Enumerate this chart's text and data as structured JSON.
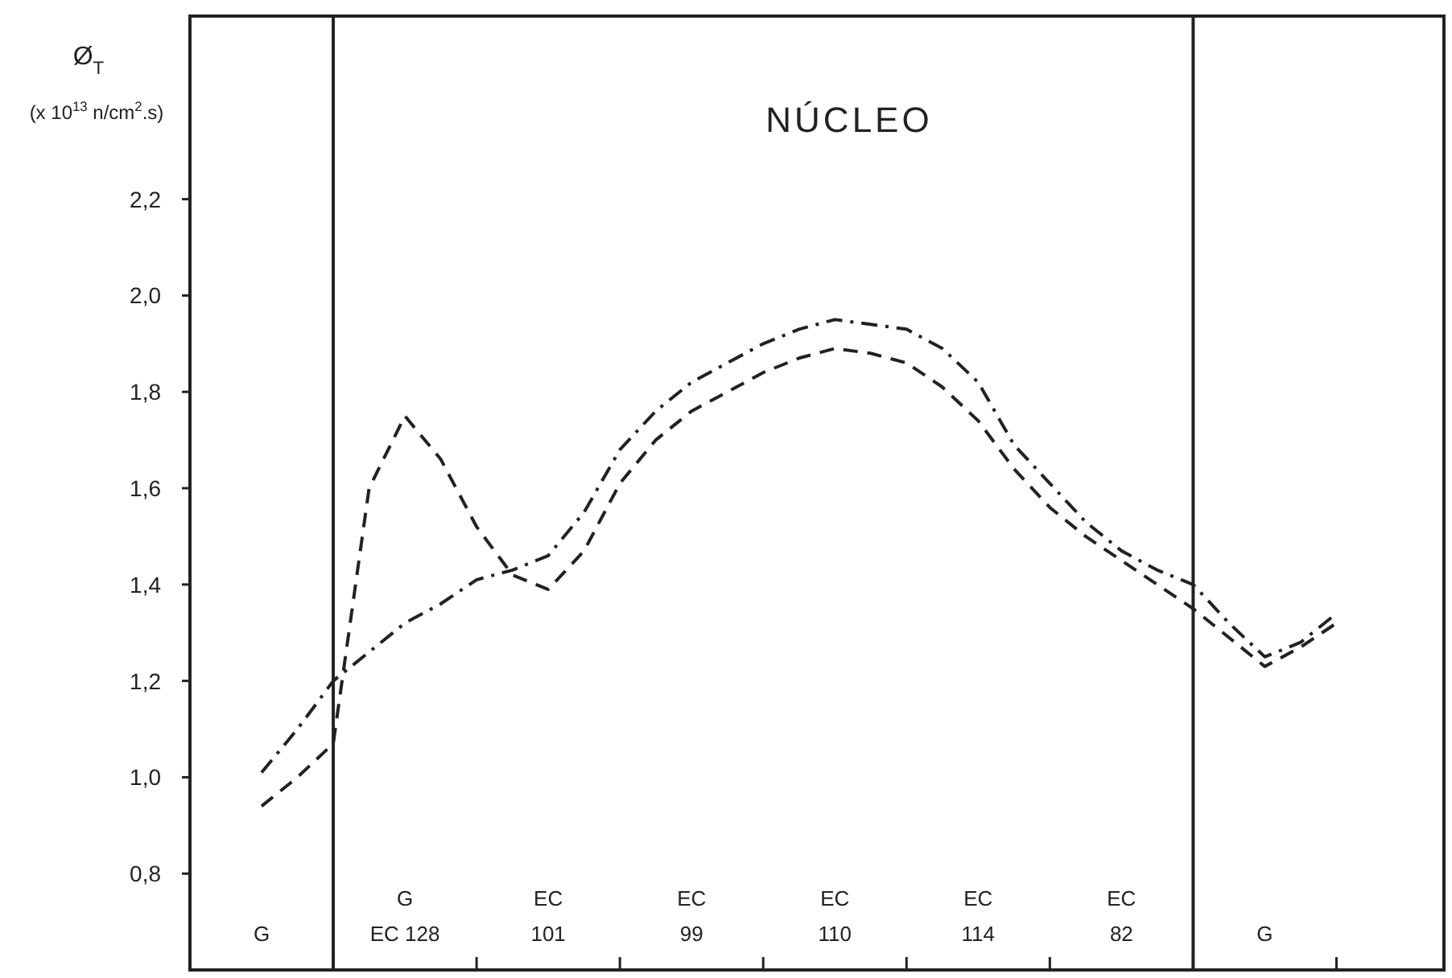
{
  "chart_data": {
    "type": "line",
    "title": "NÚCLEO",
    "ylabel": "Ø$_{T}$\n(x 10$^{13}$ n/cm$^{2}$.s)",
    "categories": [
      null,
      null,
      "G",
      null,
      null,
      null,
      "G\nEC 128",
      null,
      null,
      null,
      "EC\n101",
      null,
      null,
      null,
      "EC\n99",
      null,
      null,
      null,
      "EC\n110",
      null,
      null,
      null,
      "EC\n114",
      null,
      null,
      null,
      "EC\n82",
      null,
      null,
      null,
      "G",
      null,
      null,
      null,
      null,
      null
    ],
    "ylim": [
      0.6,
      2.58
    ],
    "yticks": [
      {
        "value": 0.8,
        "label": "0,8"
      },
      {
        "value": 1.0,
        "label": "1,0"
      },
      {
        "value": 1.2,
        "label": "1,2"
      },
      {
        "value": 1.4,
        "label": "1,4"
      },
      {
        "value": 1.6,
        "label": "1,6"
      },
      {
        "value": 1.8,
        "label": "1,8"
      },
      {
        "value": 2.0,
        "label": "2,0"
      },
      {
        "value": 2.2,
        "label": "2,2"
      }
    ],
    "series": [
      {
        "color": "#222222",
        "line_style": "dashdot",
        "values": [
          null,
          null,
          1.01,
          1.1,
          1.2,
          1.26,
          1.32,
          1.36,
          1.41,
          1.43,
          1.46,
          1.55,
          1.68,
          1.76,
          1.82,
          1.86,
          1.9,
          1.93,
          1.95,
          1.94,
          1.93,
          1.89,
          1.82,
          1.69,
          1.61,
          1.53,
          1.47,
          1.43,
          1.4,
          1.32,
          1.25,
          1.28,
          1.34,
          null,
          null,
          null
        ]
      },
      {
        "color": "#222222",
        "line_style": "dashed",
        "values": [
          null,
          null,
          0.94,
          1.0,
          1.07,
          1.6,
          1.75,
          1.66,
          1.52,
          1.42,
          1.39,
          1.47,
          1.61,
          1.7,
          1.76,
          1.8,
          1.84,
          1.87,
          1.89,
          1.88,
          1.86,
          1.81,
          1.74,
          1.64,
          1.56,
          1.5,
          1.45,
          1.4,
          1.35,
          1.29,
          1.23,
          1.27,
          1.32,
          null,
          null,
          null
        ]
      }
    ]
  }
}
